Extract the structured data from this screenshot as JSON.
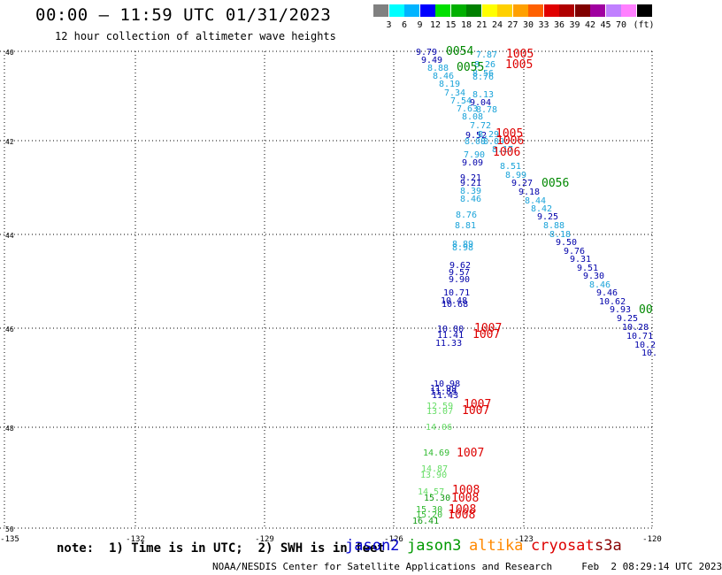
{
  "header": {
    "title": "00:00 — 11:59 UTC 01/31/2023",
    "subtitle": "12 hour collection of altimeter wave heights"
  },
  "legend": {
    "colors": [
      "#808080",
      "#00ffff",
      "#00b4ff",
      "#0000ff",
      "#00e000",
      "#00b000",
      "#008000",
      "#ffff00",
      "#ffd000",
      "#ffa000",
      "#ff6000",
      "#e00000",
      "#b00000",
      "#800000",
      "#a000a0",
      "#c080ff",
      "#ff80ff",
      "#000000"
    ],
    "labels": [
      "3",
      "6",
      "9",
      "12",
      "15",
      "18",
      "21",
      "24",
      "27",
      "30",
      "33",
      "36",
      "39",
      "42",
      "45",
      "70",
      "(ft)"
    ]
  },
  "axes": {
    "lat_labels": [
      "40",
      "42",
      "44",
      "46",
      "48",
      "50"
    ],
    "lon_labels": [
      "-135",
      "-132",
      "-129",
      "-126",
      "-123",
      "-120"
    ]
  },
  "readings": [
    {
      "v": "9.79",
      "c": "#0000aa"
    },
    {
      "v": "9.49",
      "c": "#0000aa"
    },
    {
      "v": "8.88",
      "c": "#1aa3d9"
    },
    {
      "v": "8.46",
      "c": "#1aa3d9"
    },
    {
      "v": "8.19",
      "c": "#1aa3d9"
    },
    {
      "v": "7.34",
      "c": "#1aa3d9"
    },
    {
      "v": "7.54",
      "c": "#1aa3d9"
    },
    {
      "v": "7.63",
      "c": "#1aa3d9"
    },
    {
      "v": "8.08",
      "c": "#1aa3d9"
    },
    {
      "v": "7.87",
      "c": "#1aa3d9"
    },
    {
      "v": "8.26",
      "c": "#1aa3d9"
    },
    {
      "v": "8.56",
      "c": "#1aa3d9"
    },
    {
      "v": "8.76",
      "c": "#1aa3d9"
    },
    {
      "v": "8.13",
      "c": "#1aa3d9"
    },
    {
      "v": "9.04",
      "c": "#0000aa"
    },
    {
      "v": "8.78",
      "c": "#1aa3d9"
    },
    {
      "v": "7.72",
      "c": "#1aa3d9"
    },
    {
      "v": "9.52",
      "c": "#0000aa"
    },
    {
      "v": "8.08",
      "c": "#1aa3d9"
    },
    {
      "v": "8.29",
      "c": "#1aa3d9"
    },
    {
      "v": "8.09",
      "c": "#1aa3d9"
    },
    {
      "v": "8.17",
      "c": "#1aa3d9"
    },
    {
      "v": "7.90",
      "c": "#1aa3d9"
    },
    {
      "v": "9.09",
      "c": "#0000aa"
    },
    {
      "v": "8.51",
      "c": "#1aa3d9"
    },
    {
      "v": "8.99",
      "c": "#1aa3d9"
    },
    {
      "v": "9.21",
      "c": "#0000aa"
    },
    {
      "v": "9.21",
      "c": "#0000aa"
    },
    {
      "v": "9.27",
      "c": "#0000aa"
    },
    {
      "v": "8.39",
      "c": "#1aa3d9"
    },
    {
      "v": "9.18",
      "c": "#0000aa"
    },
    {
      "v": "8.46",
      "c": "#1aa3d9"
    },
    {
      "v": "8.44",
      "c": "#1aa3d9"
    },
    {
      "v": "8.42",
      "c": "#1aa3d9"
    },
    {
      "v": "9.25",
      "c": "#0000aa"
    },
    {
      "v": "8.76",
      "c": "#1aa3d9"
    },
    {
      "v": "8.88",
      "c": "#1aa3d9"
    },
    {
      "v": "8.81",
      "c": "#1aa3d9"
    },
    {
      "v": "8.18",
      "c": "#1aa3d9"
    },
    {
      "v": "9.50",
      "c": "#0000aa"
    },
    {
      "v": "8.89",
      "c": "#1aa3d9"
    },
    {
      "v": "8.98",
      "c": "#1aa3d9"
    },
    {
      "v": "9.76",
      "c": "#0000aa"
    },
    {
      "v": "9.31",
      "c": "#0000aa"
    },
    {
      "v": "9.62",
      "c": "#0000aa"
    },
    {
      "v": "9.51",
      "c": "#0000aa"
    },
    {
      "v": "9.57",
      "c": "#0000aa"
    },
    {
      "v": "9.30",
      "c": "#0000aa"
    },
    {
      "v": "9.90",
      "c": "#0000aa"
    },
    {
      "v": "8.46",
      "c": "#1aa3d9"
    },
    {
      "v": "10.71",
      "c": "#0000aa"
    },
    {
      "v": "9.46",
      "c": "#0000aa"
    },
    {
      "v": "10.48",
      "c": "#0000aa"
    },
    {
      "v": "10.62",
      "c": "#0000aa"
    },
    {
      "v": "10.68",
      "c": "#0000aa"
    },
    {
      "v": "9.93",
      "c": "#0000aa"
    },
    {
      "v": "9.25",
      "c": "#0000aa"
    },
    {
      "v": "10.80",
      "c": "#0000aa"
    },
    {
      "v": "10.28",
      "c": "#0000aa"
    },
    {
      "v": "11.41",
      "c": "#0000aa"
    },
    {
      "v": "10.71",
      "c": "#0000aa"
    },
    {
      "v": "11.33",
      "c": "#0000aa"
    },
    {
      "v": "10.2",
      "c": "#0000aa"
    },
    {
      "v": "10.",
      "c": "#0000aa"
    },
    {
      "v": "10.98",
      "c": "#0000aa"
    },
    {
      "v": "11.43",
      "c": "#0000aa"
    },
    {
      "v": "11.99",
      "c": "#0000aa"
    },
    {
      "v": "11.89",
      "c": "#0000aa"
    },
    {
      "v": "12.59",
      "c": "#66dd66"
    },
    {
      "v": "13.07",
      "c": "#66dd66"
    },
    {
      "v": "14.06",
      "c": "#66dd66"
    },
    {
      "v": "14.69",
      "c": "#33bb33"
    },
    {
      "v": "14.87",
      "c": "#66dd66"
    },
    {
      "v": "13.90",
      "c": "#66dd66"
    },
    {
      "v": "14.57",
      "c": "#66dd66"
    },
    {
      "v": "15.30",
      "c": "#119911"
    },
    {
      "v": "15.30",
      "c": "#33bb33"
    },
    {
      "v": "15.20",
      "c": "#33bb33"
    },
    {
      "v": "16.41",
      "c": "#119911"
    }
  ],
  "stations": [
    {
      "v": "1005",
      "c": "#dd0000"
    },
    {
      "v": "1005",
      "c": "#dd0000"
    },
    {
      "v": "1005",
      "c": "#dd0000"
    },
    {
      "v": "1006",
      "c": "#dd0000"
    },
    {
      "v": "1006",
      "c": "#dd0000"
    },
    {
      "v": "1007",
      "c": "#dd0000"
    },
    {
      "v": "1007",
      "c": "#dd0000"
    },
    {
      "v": "1007",
      "c": "#dd0000"
    },
    {
      "v": "1007",
      "c": "#dd0000"
    },
    {
      "v": "1007",
      "c": "#dd0000"
    },
    {
      "v": "1008",
      "c": "#dd0000"
    },
    {
      "v": "1008",
      "c": "#dd0000"
    },
    {
      "v": "1008",
      "c": "#dd0000"
    },
    {
      "v": "1008",
      "c": "#dd0000"
    },
    {
      "v": "0054",
      "c": "#008800"
    },
    {
      "v": "0055",
      "c": "#008800"
    },
    {
      "v": "0056",
      "c": "#008800"
    },
    {
      "v": "00",
      "c": "#008800"
    }
  ],
  "footer": {
    "note": "note:  1) Time is in UTC;  2) SWH is in feet",
    "satellites": [
      {
        "name": "jason2",
        "color": "#0000cc"
      },
      {
        "name": "jason3",
        "color": "#009900"
      },
      {
        "name": "altika",
        "color": "#ff8800"
      },
      {
        "name": "cryosat",
        "color": "#dd0000"
      },
      {
        "name": "s3a",
        "color": "#880000"
      }
    ],
    "credit": "NOAA/NESDIS Center for Satellite Applications and Research     Feb  2 08:29:14 UTC 2023"
  }
}
